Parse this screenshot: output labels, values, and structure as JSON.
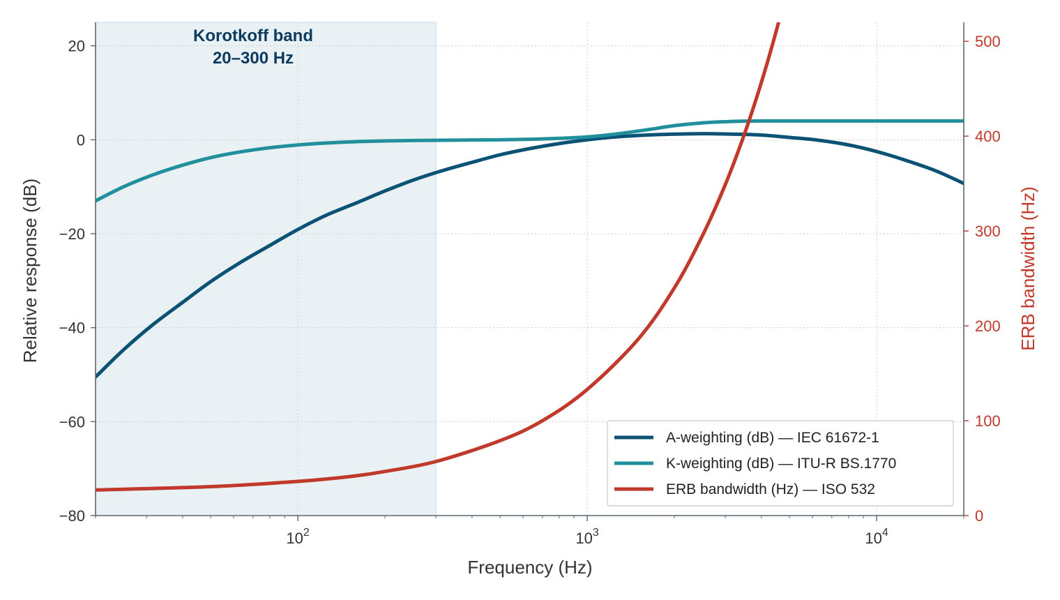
{
  "chart_data": {
    "type": "line",
    "xlabel": "Frequency (Hz)",
    "ylabel": "Relative response (dB)",
    "y2label": "ERB bandwidth (Hz)",
    "xscale": "log",
    "xlim": [
      20,
      20000
    ],
    "ylim": [
      -80,
      25
    ],
    "y2lim": [
      0,
      520
    ],
    "grid": true,
    "legend_position": "lower-right",
    "x_ticks": [
      {
        "value": 100,
        "base": "10",
        "exp": "2"
      },
      {
        "value": 1000,
        "base": "10",
        "exp": "3"
      },
      {
        "value": 10000,
        "base": "10",
        "exp": "4"
      }
    ],
    "y_ticks": [
      20,
      0,
      -20,
      -40,
      -60,
      -80
    ],
    "y_tick_labels": [
      "20",
      "0",
      "−20",
      "−40",
      "−60",
      "−80"
    ],
    "y2_ticks": [
      500,
      400,
      300,
      200,
      100,
      0
    ],
    "y2_tick_labels": [
      "500",
      "400",
      "300",
      "200",
      "100",
      "0"
    ],
    "band": {
      "x_range": [
        20,
        300
      ],
      "label_line1": "Korotkoff band",
      "label_line2": "20–300 Hz",
      "color": "#dbe7ee",
      "label_color": "#0d3b5e"
    },
    "series": [
      {
        "name": "A-weighting (dB) — IEC 61672-1",
        "axis": "left",
        "color": "#0b5275",
        "x": [
          20,
          25,
          31.5,
          40,
          50,
          63,
          80,
          100,
          125,
          160,
          200,
          250,
          315,
          400,
          500,
          630,
          800,
          1000,
          1250,
          1600,
          2000,
          2500,
          3150,
          4000,
          5000,
          6300,
          8000,
          10000,
          12500,
          16000,
          20000
        ],
        "y": [
          -50.5,
          -44.7,
          -39.4,
          -34.6,
          -30.2,
          -26.2,
          -22.5,
          -19.1,
          -16.1,
          -13.4,
          -10.9,
          -8.6,
          -6.6,
          -4.8,
          -3.2,
          -1.9,
          -0.8,
          0.0,
          0.6,
          1.0,
          1.2,
          1.3,
          1.2,
          1.0,
          0.5,
          -0.1,
          -1.1,
          -2.5,
          -4.3,
          -6.6,
          -9.3
        ]
      },
      {
        "name": "K-weighting (dB) — ITU-R BS.1770",
        "axis": "left",
        "color": "#21909c",
        "x": [
          20,
          25,
          31.5,
          40,
          50,
          63,
          80,
          100,
          125,
          160,
          200,
          250,
          315,
          400,
          500,
          630,
          800,
          1000,
          1250,
          1600,
          2000,
          2500,
          3150,
          4000,
          5000,
          6300,
          8000,
          10000,
          12500,
          16000,
          20000
        ],
        "y": [
          -13.0,
          -10.0,
          -7.5,
          -5.4,
          -3.8,
          -2.6,
          -1.7,
          -1.1,
          -0.7,
          -0.4,
          -0.25,
          -0.15,
          -0.1,
          -0.05,
          0.0,
          0.1,
          0.3,
          0.6,
          1.2,
          2.1,
          3.0,
          3.6,
          3.9,
          4.0,
          4.0,
          4.0,
          4.0,
          4.0,
          4.0,
          4.0,
          4.0
        ]
      },
      {
        "name": "ERB bandwidth (Hz) — ISO 532",
        "axis": "right",
        "color": "#c0392b",
        "x": [
          20,
          50,
          100,
          150,
          200,
          300,
          500,
          700,
          1000,
          1500,
          2000,
          2500,
          3000,
          3500,
          4000,
          4500,
          5000
        ],
        "y": [
          27,
          30.5,
          36,
          41,
          46.5,
          57,
          79,
          100,
          133,
          186,
          240,
          295,
          349,
          403,
          457,
          511,
          565
        ]
      }
    ]
  }
}
